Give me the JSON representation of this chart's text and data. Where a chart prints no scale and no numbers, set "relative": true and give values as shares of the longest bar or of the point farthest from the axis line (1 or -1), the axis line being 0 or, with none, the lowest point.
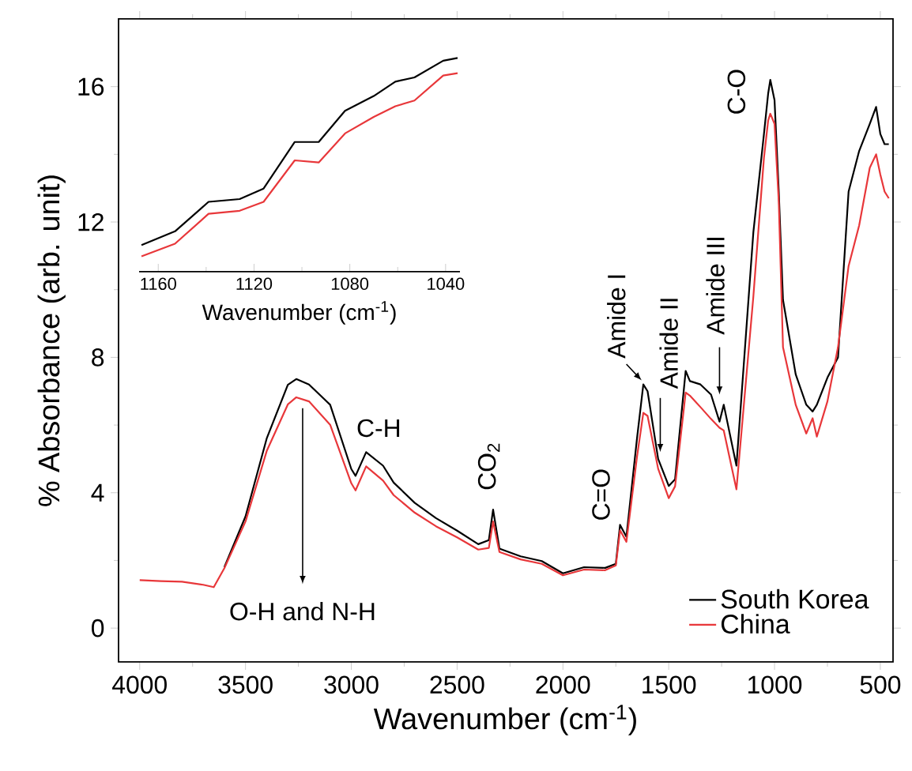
{
  "chart_data": [
    {
      "type": "line",
      "xlabel": "Wavenumber (cm$^{-1}$)",
      "ylabel": "% Absorbance (arb. unit)",
      "xlim": [
        4100,
        440
      ],
      "ylim": [
        -1,
        18
      ],
      "xticks": [
        4000,
        3500,
        3000,
        2500,
        2000,
        1500,
        1000,
        500
      ],
      "yticks": [
        0,
        4,
        8,
        12,
        16
      ],
      "legend": "bottom right",
      "x": [
        4000,
        3900,
        3800,
        3700,
        3650,
        3600,
        3500,
        3400,
        3300,
        3260,
        3200,
        3100,
        3000,
        2980,
        2930,
        2850,
        2800,
        2700,
        2600,
        2500,
        2400,
        2350,
        2330,
        2300,
        2200,
        2100,
        2000,
        1900,
        1800,
        1750,
        1730,
        1700,
        1650,
        1620,
        1600,
        1550,
        1500,
        1470,
        1420,
        1400,
        1350,
        1300,
        1260,
        1240,
        1180,
        1100,
        1050,
        1030,
        1020,
        1000,
        980,
        960,
        900,
        850,
        820,
        800,
        750,
        700,
        650,
        600,
        550,
        520,
        500,
        480,
        460
      ],
      "series": [
        {
          "name": "South Korea",
          "color": "#000000",
          "values": [
            null,
            null,
            null,
            null,
            null,
            1.8,
            3.3,
            5.6,
            7.19,
            7.36,
            7.2,
            6.6,
            4.7,
            4.5,
            5.2,
            4.8,
            4.3,
            3.7,
            3.25,
            2.88,
            2.48,
            2.6,
            3.5,
            2.35,
            2.12,
            1.98,
            1.62,
            1.8,
            1.78,
            1.9,
            3.05,
            2.7,
            5.6,
            7.2,
            7.0,
            5.0,
            4.2,
            4.4,
            7.6,
            7.3,
            7.2,
            6.9,
            6.1,
            6.6,
            4.8,
            11.7,
            14.6,
            15.8,
            16.2,
            15.6,
            12.9,
            9.7,
            7.5,
            6.6,
            6.4,
            6.6,
            7.4,
            8.0,
            12.9,
            14.1,
            14.9,
            15.4,
            14.6,
            14.3,
            14.3
          ]
        },
        {
          "name": "China",
          "color": "#e8373a",
          "values": [
            1.42,
            1.39,
            1.37,
            1.28,
            1.21,
            1.77,
            3.15,
            5.23,
            6.61,
            6.82,
            6.7,
            6.01,
            4.28,
            4.07,
            4.78,
            4.36,
            3.93,
            3.41,
            3.01,
            2.68,
            2.32,
            2.37,
            3.15,
            2.25,
            2.03,
            1.9,
            1.56,
            1.73,
            1.71,
            1.85,
            2.89,
            2.55,
            5.06,
            6.36,
            6.27,
            4.71,
            3.84,
            4.19,
            6.96,
            6.87,
            6.53,
            6.18,
            5.92,
            5.84,
            4.1,
            9.8,
            13.9,
            15.0,
            15.2,
            14.9,
            12.6,
            8.3,
            6.6,
            5.75,
            6.2,
            5.66,
            6.7,
            8.3,
            10.7,
            11.9,
            13.6,
            14.0,
            13.4,
            12.9,
            12.7
          ]
        }
      ],
      "annotations": [
        {
          "text": "O-H and N-H",
          "x": 3230,
          "y": 6.5
        },
        {
          "text": "C-H",
          "x": 2930,
          "y": 5.26
        },
        {
          "text": "CO$_{2}$",
          "x": 2330,
          "y": 3.5
        },
        {
          "text": "C=O",
          "x": 1730,
          "y": 3.05
        },
        {
          "text": "Amide I",
          "x": 1620,
          "y": 7.2
        },
        {
          "text": "Amide II",
          "x": 1540,
          "y": 5.2
        },
        {
          "text": "Amide III",
          "x": 1260,
          "y": 6.8
        },
        {
          "text": "C-O",
          "x": 1020,
          "y": 16.2
        }
      ]
    },
    {
      "type": "line",
      "xlabel": "Wavenumber (cm$^{-1}$)",
      "xlim": [
        1168,
        1034
      ],
      "xticks": [
        1160,
        1120,
        1080,
        1040
      ],
      "relative": true,
      "x": [
        1167,
        1153,
        1139,
        1126,
        1116,
        1103,
        1093,
        1082,
        1070,
        1061,
        1053,
        1041,
        1035
      ],
      "series": [
        {
          "color": "#000000",
          "values": [
            0.125,
            0.189,
            0.327,
            0.34,
            0.389,
            0.607,
            0.607,
            0.753,
            0.822,
            0.889,
            0.909,
            0.987,
            1
          ]
        },
        {
          "color": "#e8373a",
          "values": [
            0.072,
            0.131,
            0.271,
            0.285,
            0.327,
            0.521,
            0.511,
            0.647,
            0.724,
            0.774,
            0.801,
            0.918,
            0.929
          ]
        }
      ]
    }
  ]
}
